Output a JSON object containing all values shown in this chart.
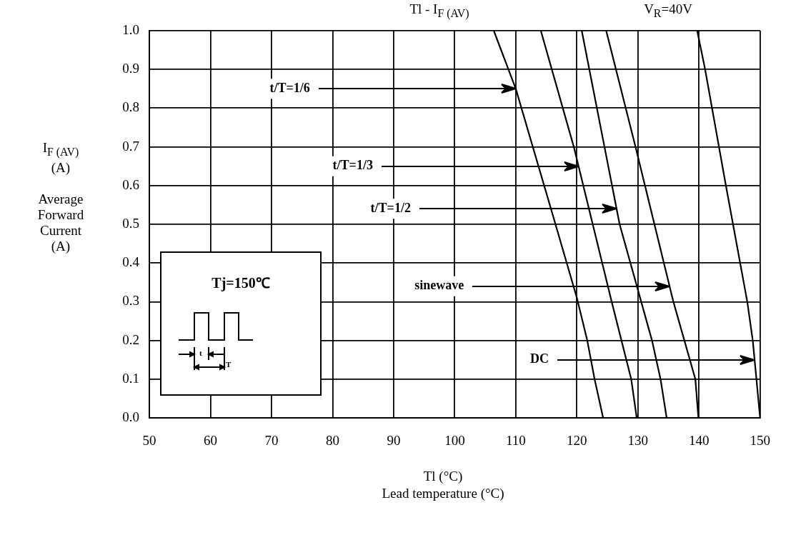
{
  "chart_data": {
    "type": "line",
    "title": "Tl - I$_{F (AV)}$",
    "subtitle": "V$_{R}$=40V",
    "xlabel": "Tl (°C)\nLead temperature (°C)",
    "ylabel": "I$_{F (AV)}$\n(A)\n\nAverage\nForward\nCurrent\n(A)",
    "series": [
      {
        "color": "#000000",
        "x": [
          106.4,
          110,
          116.5,
          120,
          121.7,
          122.9,
          124.3
        ],
        "values": [
          1.0,
          0.85,
          0.5,
          0.31,
          0.2,
          0.1,
          0
        ]
      },
      {
        "color": "#000000",
        "x": [
          114.1,
          119.5,
          125.7,
          128.9,
          129.8
        ],
        "values": [
          1.0,
          0.7,
          0.3,
          0.1,
          0
        ]
      },
      {
        "color": "#000000",
        "x": [
          120.8,
          127,
          132.3,
          133.7,
          134.7
        ],
        "values": [
          1.0,
          0.5,
          0.2,
          0.1,
          0
        ]
      },
      {
        "color": "#000000",
        "x": [
          124.8,
          129.6,
          135.8,
          139.4,
          139.9
        ],
        "values": [
          1.0,
          0.7,
          0.3,
          0.1,
          0
        ]
      },
      {
        "color": "#000000",
        "x": [
          139.7,
          141,
          144.4,
          147.9,
          148.8,
          150
        ],
        "values": [
          1.0,
          0.9,
          0.6,
          0.3,
          0.2,
          0
        ]
      }
    ],
    "xlim": [
      50,
      150
    ],
    "xticks": [
      50,
      60,
      70,
      80,
      90,
      100,
      110,
      120,
      130,
      140,
      150
    ],
    "ylim": [
      0,
      1.0
    ],
    "yticks": [
      {
        "value": 0,
        "label": "0.0"
      },
      0.1,
      0.2,
      0.3,
      0.4,
      0.5,
      0.6,
      0.7,
      0.8,
      0.9,
      {
        "value": 1.0,
        "label": "1.0"
      }
    ],
    "grid": true,
    "legend": false,
    "marker": "none",
    "annotations": [
      {
        "text": "t/T=1/6",
        "x": 110,
        "y": 0.85
      },
      {
        "text": "t/T=1/3",
        "x": 120.3,
        "y": 0.65
      },
      {
        "text": "t/T=1/2",
        "x": 126.5,
        "y": 0.54
      },
      {
        "text": "sinewave",
        "x": 135.2,
        "y": 0.34
      },
      {
        "text": "DC",
        "x": 149.1,
        "y": 0.15
      },
      "Tj=150℃",
      "t",
      "T"
    ]
  }
}
